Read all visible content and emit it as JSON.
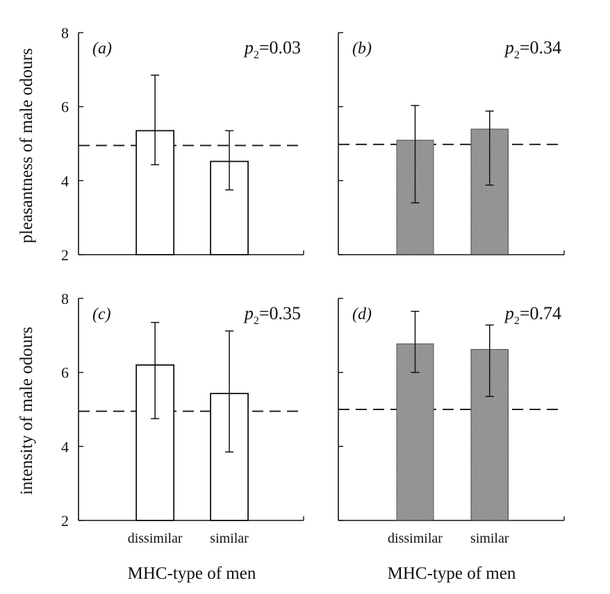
{
  "figure": {
    "y_axis_titles": [
      "pleasantness of male odours",
      "intensity of male odours"
    ],
    "x_axis_title": "MHC-type of men"
  },
  "chart_data": [
    {
      "type": "bar",
      "panel_label": "(a)",
      "p_value": {
        "symbol": "p",
        "subscript": "2",
        "value": "=0.03"
      },
      "categories": [
        "dissimilar",
        "similar"
      ],
      "values": [
        5.35,
        4.52
      ],
      "error_low": [
        4.43,
        3.75
      ],
      "error_high": [
        6.85,
        5.35
      ],
      "reference_line": 4.95,
      "ylim": [
        2,
        8
      ],
      "yticks": [
        2,
        4,
        6,
        8
      ],
      "ylabel": "pleasantness of male odours",
      "xlabel": "",
      "bar_color": "#ffffff",
      "show_category_labels": false
    },
    {
      "type": "bar",
      "panel_label": "(b)",
      "p_value": {
        "symbol": "p",
        "subscript": "2",
        "value": "=0.34"
      },
      "categories": [
        "dissimilar",
        "similar"
      ],
      "values": [
        5.1,
        5.4
      ],
      "error_low": [
        3.4,
        3.88
      ],
      "error_high": [
        6.03,
        5.88
      ],
      "reference_line": 4.98,
      "ylim": [
        2,
        8
      ],
      "yticks": [
        2,
        4,
        6,
        8
      ],
      "ylabel": "",
      "xlabel": "",
      "bar_color": "#8a8a8a",
      "show_category_labels": false
    },
    {
      "type": "bar",
      "panel_label": "(c)",
      "p_value": {
        "symbol": "p",
        "subscript": "2",
        "value": "=0.35"
      },
      "categories": [
        "dissimilar",
        "similar"
      ],
      "values": [
        6.2,
        5.43
      ],
      "error_low": [
        4.75,
        3.85
      ],
      "error_high": [
        7.35,
        7.12
      ],
      "reference_line": 4.95,
      "ylim": [
        2,
        8
      ],
      "yticks": [
        2,
        4,
        6,
        8
      ],
      "ylabel": "intensity of male odours",
      "xlabel": "MHC-type of men",
      "bar_color": "#ffffff",
      "show_category_labels": true
    },
    {
      "type": "bar",
      "panel_label": "(d)",
      "p_value": {
        "symbol": "p",
        "subscript": "2",
        "value": "=0.74"
      },
      "categories": [
        "dissimilar",
        "similar"
      ],
      "values": [
        6.78,
        6.63
      ],
      "error_low": [
        6.0,
        5.35
      ],
      "error_high": [
        7.65,
        7.28
      ],
      "reference_line": 5.0,
      "ylim": [
        2,
        8
      ],
      "yticks": [
        2,
        4,
        6,
        8
      ],
      "ylabel": "",
      "xlabel": "MHC-type of men",
      "bar_color": "#8a8a8a",
      "show_category_labels": true
    }
  ]
}
